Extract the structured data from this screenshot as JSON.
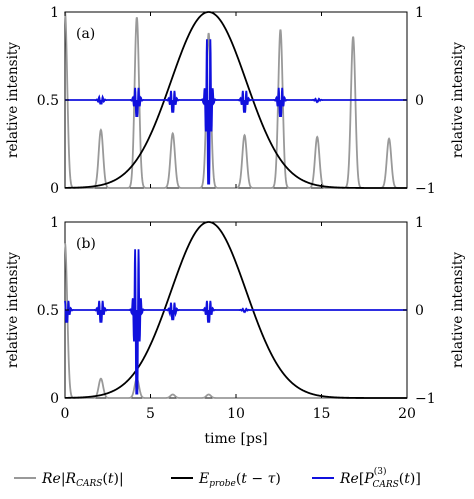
{
  "chart_data": [
    {
      "type": "line",
      "panel_label": "(a)",
      "title": "",
      "xlabel": "",
      "ylabel": "relative intensity",
      "ylabel_right": "relative intensity",
      "xlim": [
        0,
        20
      ],
      "ylim": [
        0,
        1
      ],
      "ylim_right": [
        -1,
        1
      ],
      "x_ticks": [
        0,
        5,
        10,
        15,
        20
      ],
      "x_tick_labels_visible": false,
      "y_ticks": [
        "0",
        "0.5",
        "1"
      ],
      "y_ticks_right": [
        "−1",
        "0",
        "1"
      ],
      "grid": false,
      "series": [
        {
          "name": "Re[R_CARS(t)]",
          "color": "#999999",
          "axis": "left",
          "shape": "gaussian-pulse-train",
          "pulse_width_ps": 0.13,
          "peaks": [
            {
              "t": 0.0,
              "amp": 1.0
            },
            {
              "t": 2.1,
              "amp": 0.33
            },
            {
              "t": 4.2,
              "amp": 0.97
            },
            {
              "t": 6.3,
              "amp": 0.31
            },
            {
              "t": 8.4,
              "amp": 0.88
            },
            {
              "t": 10.5,
              "amp": 0.3
            },
            {
              "t": 12.6,
              "amp": 0.9
            },
            {
              "t": 14.75,
              "amp": 0.29
            },
            {
              "t": 16.85,
              "amp": 0.86
            },
            {
              "t": 18.95,
              "amp": 0.28
            }
          ]
        },
        {
          "name": "E_probe(t − τ)",
          "color": "#000000",
          "axis": "left",
          "shape": "gaussian",
          "center": 8.4,
          "sigma": 2.2,
          "amp": 1.0
        },
        {
          "name": "Re[P_CARS^(3)(t)]",
          "color": "#1010dd",
          "axis": "right",
          "shape": "oscillating-bursts",
          "bursts": [
            {
              "t": 4.2,
              "amp": 0.2
            },
            {
              "t": 6.3,
              "amp": 0.15
            },
            {
              "t": 8.4,
              "amp": 1.0
            },
            {
              "t": 10.5,
              "amp": 0.15
            },
            {
              "t": 12.6,
              "amp": 0.2
            }
          ],
          "small_bursts": [
            {
              "t": 2.1,
              "amp": 0.05
            },
            {
              "t": 14.75,
              "amp": 0.02
            }
          ]
        }
      ]
    },
    {
      "type": "line",
      "panel_label": "(b)",
      "title": "",
      "xlabel": "time [ps]",
      "ylabel": "relative intensity",
      "ylabel_right": "relative intensity",
      "xlim": [
        0,
        20
      ],
      "ylim": [
        0,
        1
      ],
      "ylim_right": [
        -1,
        1
      ],
      "x_ticks": [
        "0",
        "5",
        "10",
        "15",
        "20"
      ],
      "y_ticks": [
        "0",
        "0.5",
        "1"
      ],
      "y_ticks_right": [
        "−1",
        "0",
        "1"
      ],
      "grid": false,
      "series": [
        {
          "name": "Re[R_CARS(t)]",
          "color": "#999999",
          "axis": "left",
          "shape": "gaussian-pulse-train",
          "pulse_width_ps": 0.13,
          "peaks": [
            {
              "t": 0.0,
              "amp": 0.88
            },
            {
              "t": 2.1,
              "amp": 0.11
            },
            {
              "t": 4.2,
              "amp": 0.11
            },
            {
              "t": 6.3,
              "amp": 0.02
            },
            {
              "t": 8.4,
              "amp": 0.02
            }
          ]
        },
        {
          "name": "E_probe(t − τ)",
          "color": "#000000",
          "axis": "left",
          "shape": "gaussian",
          "center": 8.4,
          "sigma": 2.2,
          "amp": 1.0
        },
        {
          "name": "Re[P_CARS^(3)(t)]",
          "color": "#1010dd",
          "axis": "right",
          "shape": "oscillating-bursts",
          "bursts": [
            {
              "t": 0.1,
              "amp": 0.15
            },
            {
              "t": 2.1,
              "amp": 0.15
            },
            {
              "t": 4.2,
              "amp": 1.0
            },
            {
              "t": 6.3,
              "amp": 0.12
            },
            {
              "t": 8.4,
              "amp": 0.15
            }
          ],
          "small_bursts": [
            {
              "t": 10.5,
              "amp": 0.02
            }
          ]
        }
      ]
    }
  ],
  "legend": {
    "placement": "bottom",
    "items": [
      {
        "name": "gray",
        "text": "Re[R_CARS(t)]",
        "color": "#999999"
      },
      {
        "name": "black",
        "text": "E_probe(t − τ)",
        "color": "#000000"
      },
      {
        "name": "blue",
        "text": "Re[P_CARS^(3)(t)]",
        "color": "#1010dd"
      }
    ]
  }
}
